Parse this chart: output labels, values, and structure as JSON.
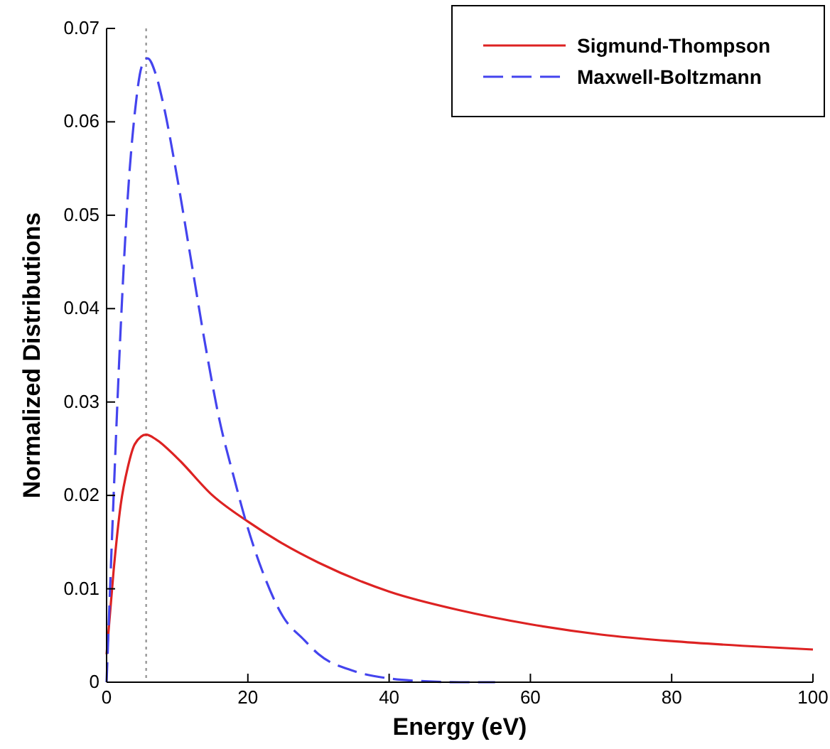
{
  "chart_data": {
    "type": "line",
    "xlabel": "Energy (eV)",
    "ylabel": "Normalized Distributions",
    "xlim": [
      0,
      100
    ],
    "xticks": [
      0,
      20,
      40,
      60,
      80,
      100
    ],
    "ylim": [
      0,
      0.07
    ],
    "yticks": [
      0,
      0.01,
      0.02,
      0.03,
      0.04,
      0.05,
      0.06,
      0.07
    ],
    "grid": false,
    "legend": "top right",
    "ref_lines": [
      {
        "axis": "x",
        "value": 5.6,
        "color": "#999999",
        "line_style": "dotted"
      }
    ],
    "series": [
      {
        "name": "Sigmund-Thompson",
        "color": "#dd2222",
        "line_style": "solid",
        "x": [
          0,
          1,
          2,
          3,
          4,
          5.6,
          7,
          10,
          15,
          20,
          25,
          30,
          40,
          50,
          60,
          70,
          80,
          90,
          100
        ],
        "values": [
          0.003,
          0.012,
          0.019,
          0.023,
          0.0255,
          0.0265,
          0.026,
          0.024,
          0.02,
          0.0172,
          0.0148,
          0.0128,
          0.0097,
          0.0077,
          0.0062,
          0.0051,
          0.0044,
          0.0039,
          0.0035
        ]
      },
      {
        "name": "Maxwell-Boltzmann",
        "color": "#4444ee",
        "line_style": "dashed",
        "x": [
          0,
          1,
          2,
          3,
          4,
          5,
          5.8,
          7,
          8,
          10,
          12,
          14,
          16,
          18,
          20,
          22,
          25,
          28,
          30,
          35,
          40,
          45,
          50,
          55
        ],
        "values": [
          0,
          0.02,
          0.038,
          0.052,
          0.061,
          0.066,
          0.0668,
          0.065,
          0.062,
          0.054,
          0.045,
          0.036,
          0.028,
          0.022,
          0.0165,
          0.012,
          0.007,
          0.0045,
          0.003,
          0.0012,
          0.0004,
          0.0001,
          0,
          0
        ]
      }
    ]
  }
}
